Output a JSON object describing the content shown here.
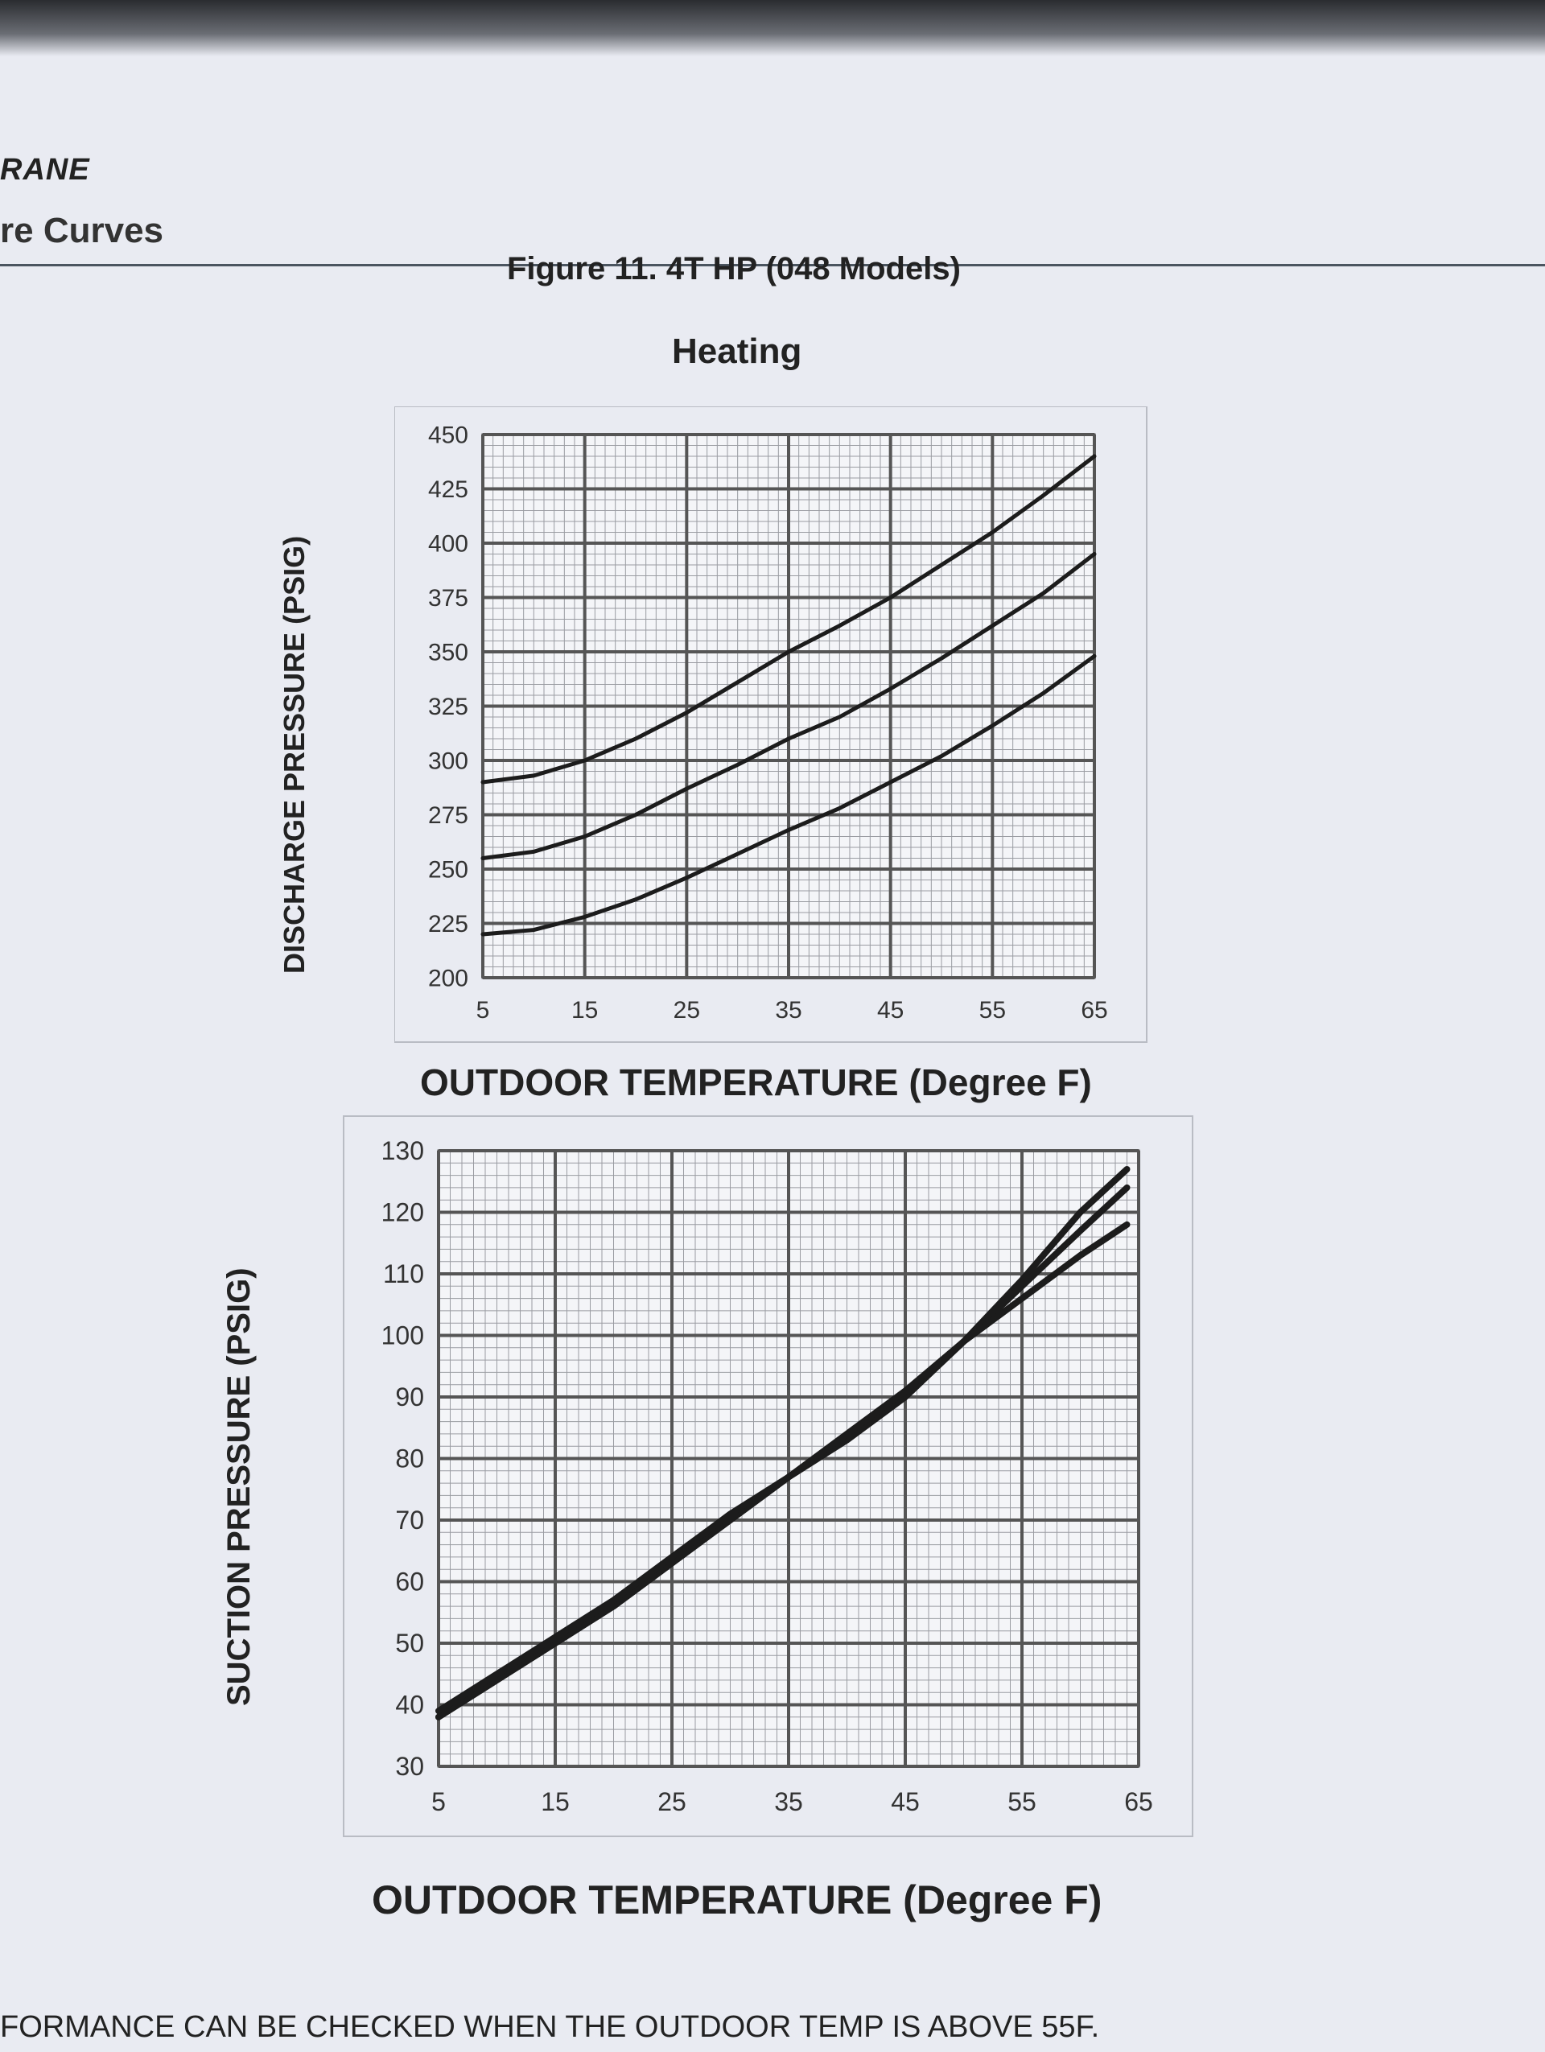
{
  "header": {
    "brand": "RANE",
    "section": "re Curves",
    "figure_title": "Figure 11. 4T HP (048 Models)",
    "mode": "Heating"
  },
  "footer": {
    "note": "FORMANCE CAN BE CHECKED WHEN THE OUTDOOR TEMP IS ABOVE 55F."
  },
  "colors": {
    "background": "#e9ebf2",
    "grid": "#555555",
    "curve": "#1c1c1c"
  },
  "chart_data": [
    {
      "type": "line",
      "title": "",
      "xlabel": "OUTDOOR TEMPERATURE (Degree F)",
      "ylabel": "DISCHARGE PRESSURE (PSIG)",
      "xlim": [
        5,
        65
      ],
      "ylim": [
        200,
        450
      ],
      "xticks": [
        5,
        15,
        25,
        35,
        45,
        55,
        65
      ],
      "yticks": [
        200,
        225,
        250,
        275,
        300,
        325,
        350,
        375,
        400,
        425,
        450
      ],
      "grid": true,
      "x": [
        5,
        10,
        15,
        20,
        25,
        30,
        35,
        40,
        45,
        50,
        55,
        60,
        65
      ],
      "series": [
        {
          "values": [
            290,
            293,
            300,
            310,
            322,
            336,
            350,
            362,
            375,
            390,
            405,
            422,
            440
          ]
        },
        {
          "values": [
            255,
            258,
            265,
            275,
            287,
            298,
            310,
            320,
            333,
            347,
            362,
            377,
            395
          ]
        },
        {
          "values": [
            220,
            222,
            228,
            236,
            246,
            257,
            268,
            278,
            290,
            302,
            316,
            331,
            348
          ]
        }
      ]
    },
    {
      "type": "line",
      "title": "",
      "xlabel": "OUTDOOR TEMPERATURE (Degree F)",
      "ylabel": "SUCTION PRESSURE (PSIG)",
      "xlim": [
        5,
        65
      ],
      "ylim": [
        30,
        130
      ],
      "xticks": [
        5,
        15,
        25,
        35,
        45,
        55,
        65
      ],
      "yticks": [
        30,
        40,
        50,
        60,
        70,
        80,
        90,
        100,
        110,
        120,
        130
      ],
      "grid": true,
      "x": [
        5,
        10,
        15,
        20,
        25,
        30,
        35,
        40,
        45,
        50,
        55,
        60,
        64
      ],
      "series": [
        {
          "values": [
            38,
            44,
            50,
            56,
            63,
            70,
            77,
            83,
            90,
            99,
            109,
            120,
            127
          ]
        },
        {
          "values": [
            38,
            44,
            50,
            56,
            63,
            70,
            77,
            83,
            90,
            99,
            108,
            117,
            124
          ]
        },
        {
          "values": [
            39,
            45,
            51,
            57,
            64,
            71,
            77,
            84,
            91,
            99,
            106,
            113,
            118
          ]
        }
      ]
    }
  ]
}
